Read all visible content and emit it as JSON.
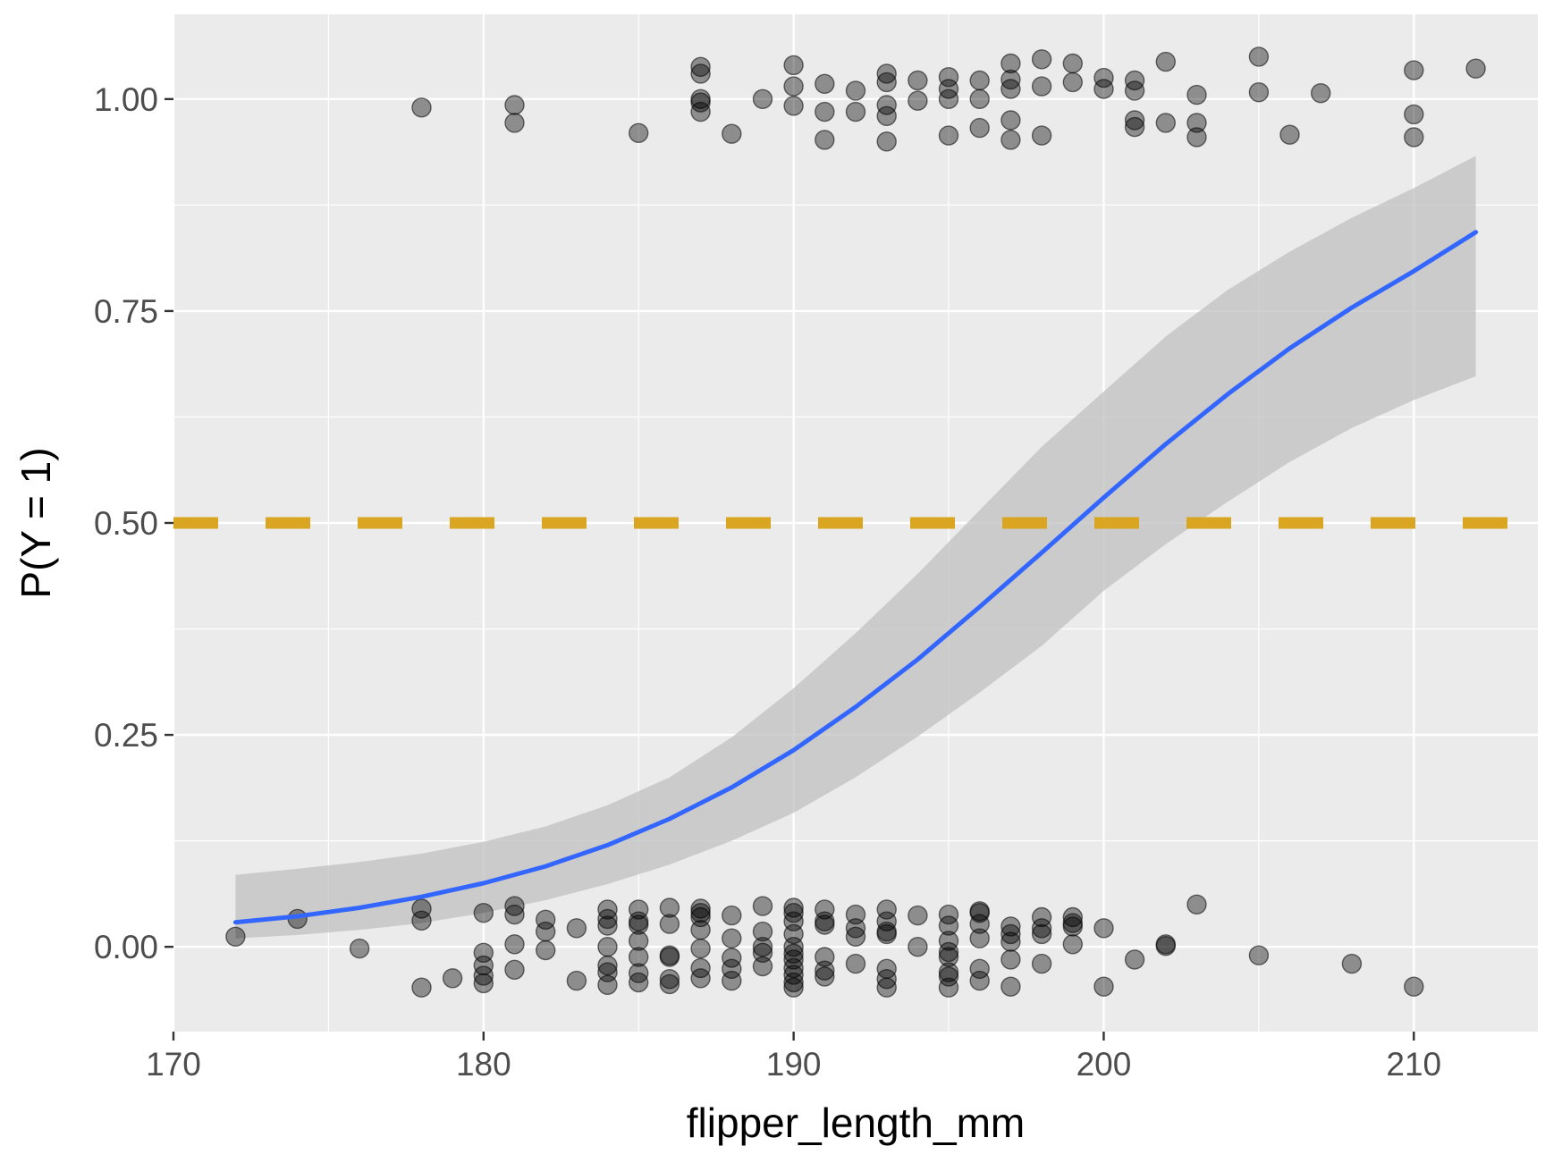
{
  "chart_data": {
    "type": "scatter",
    "xlabel": "flipper_length_mm",
    "ylabel": "P(Y = 1)",
    "xlim": [
      170,
      214
    ],
    "ylim": [
      -0.1,
      1.1
    ],
    "x_ticks": [
      170,
      180,
      190,
      200,
      210
    ],
    "x_tick_labels": [
      "170",
      "180",
      "190",
      "200",
      "210"
    ],
    "y_ticks": [
      0,
      0.25,
      0.5,
      0.75,
      1
    ],
    "y_tick_labels": [
      "0.00",
      "0.25",
      "0.50",
      "0.75",
      "1.00"
    ],
    "grid": true,
    "legend": "none",
    "colors": {
      "panel_background": "#ebebeb",
      "grid_line": "#ffffff",
      "points": "#000000",
      "fit_line": "#3366ff",
      "confidence_band": "#c0c0c0",
      "reference_line": "#daa520"
    },
    "reference_line": {
      "y": 0.5,
      "style": "dashed"
    },
    "fit": {
      "x": [
        172,
        174,
        176,
        178,
        180,
        182,
        184,
        186,
        188,
        190,
        192,
        194,
        196,
        198,
        200,
        202,
        204,
        206,
        208,
        210,
        212
      ],
      "y": [
        0.029,
        0.036,
        0.046,
        0.059,
        0.075,
        0.095,
        0.12,
        0.151,
        0.188,
        0.232,
        0.283,
        0.339,
        0.401,
        0.465,
        0.53,
        0.593,
        0.652,
        0.706,
        0.754,
        0.797,
        0.843
      ],
      "lower": [
        0.01,
        0.014,
        0.02,
        0.028,
        0.04,
        0.055,
        0.074,
        0.097,
        0.125,
        0.158,
        0.2,
        0.248,
        0.3,
        0.355,
        0.42,
        0.475,
        0.525,
        0.572,
        0.612,
        0.645,
        0.673
      ],
      "upper": [
        0.085,
        0.092,
        0.1,
        0.11,
        0.124,
        0.142,
        0.167,
        0.2,
        0.247,
        0.305,
        0.37,
        0.44,
        0.515,
        0.59,
        0.655,
        0.72,
        0.775,
        0.82,
        0.86,
        0.895,
        0.933
      ]
    },
    "series": [
      {
        "values_y1": [
          [
            178,
            0.99
          ],
          [
            181,
            0.993
          ],
          [
            181,
            0.972
          ],
          [
            185,
            0.96
          ],
          [
            187,
            1.038
          ],
          [
            187,
            1.03
          ],
          [
            187,
            1.0
          ],
          [
            187,
            0.996
          ],
          [
            187,
            0.985
          ],
          [
            188,
            0.959
          ],
          [
            189,
            1.0
          ],
          [
            190,
            1.04
          ],
          [
            190,
            1.015
          ],
          [
            190,
            0.992
          ],
          [
            191,
            1.018
          ],
          [
            191,
            0.985
          ],
          [
            191,
            0.952
          ],
          [
            192,
            1.01
          ],
          [
            192,
            0.985
          ],
          [
            193,
            1.03
          ],
          [
            193,
            1.02
          ],
          [
            193,
            0.993
          ],
          [
            193,
            0.98
          ],
          [
            193,
            0.95
          ],
          [
            194,
            1.022
          ],
          [
            194,
            0.998
          ],
          [
            195,
            1.026
          ],
          [
            195,
            1.012
          ],
          [
            195,
            1.0
          ],
          [
            195,
            0.957
          ],
          [
            196,
            1.022
          ],
          [
            196,
            1.0
          ],
          [
            196,
            0.966
          ],
          [
            197,
            1.042
          ],
          [
            197,
            1.023
          ],
          [
            197,
            1.012
          ],
          [
            197,
            0.975
          ],
          [
            197,
            0.952
          ],
          [
            198,
            1.047
          ],
          [
            198,
            1.015
          ],
          [
            198,
            0.957
          ],
          [
            199,
            1.042
          ],
          [
            199,
            1.02
          ],
          [
            200,
            1.025
          ],
          [
            200,
            1.012
          ],
          [
            201,
            1.022
          ],
          [
            201,
            1.01
          ],
          [
            201,
            0.975
          ],
          [
            201,
            0.967
          ],
          [
            202,
            1.044
          ],
          [
            202,
            0.972
          ],
          [
            203,
            1.005
          ],
          [
            203,
            0.972
          ],
          [
            203,
            0.955
          ],
          [
            205,
            1.05
          ],
          [
            205,
            1.008
          ],
          [
            206,
            0.958
          ],
          [
            207,
            1.007
          ],
          [
            210,
            1.034
          ],
          [
            210,
            0.982
          ],
          [
            210,
            0.955
          ],
          [
            212,
            1.036
          ]
        ]
      },
      {
        "values_y0": [
          [
            172,
            0.012
          ],
          [
            174,
            0.033
          ],
          [
            176,
            -0.002
          ],
          [
            178,
            0.045
          ],
          [
            178,
            0.031
          ],
          [
            178,
            -0.048
          ],
          [
            179,
            -0.037
          ],
          [
            180,
            0.04
          ],
          [
            180,
            -0.007
          ],
          [
            180,
            -0.022
          ],
          [
            180,
            -0.034
          ],
          [
            180,
            -0.043
          ],
          [
            181,
            0.048
          ],
          [
            181,
            0.038
          ],
          [
            181,
            0.003
          ],
          [
            181,
            -0.027
          ],
          [
            182,
            0.032
          ],
          [
            182,
            0.018
          ],
          [
            182,
            -0.004
          ],
          [
            183,
            0.022
          ],
          [
            183,
            -0.04
          ],
          [
            184,
            0.044
          ],
          [
            184,
            0.033
          ],
          [
            184,
            0.025
          ],
          [
            184,
            0.0
          ],
          [
            184,
            -0.022
          ],
          [
            184,
            -0.03
          ],
          [
            184,
            -0.045
          ],
          [
            185,
            0.044
          ],
          [
            185,
            0.03
          ],
          [
            185,
            0.026
          ],
          [
            185,
            0.007
          ],
          [
            185,
            -0.012
          ],
          [
            185,
            -0.031
          ],
          [
            185,
            -0.042
          ],
          [
            186,
            0.046
          ],
          [
            186,
            0.027
          ],
          [
            186,
            -0.01
          ],
          [
            186,
            -0.012
          ],
          [
            186,
            -0.038
          ],
          [
            186,
            -0.044
          ],
          [
            187,
            0.045
          ],
          [
            187,
            0.04
          ],
          [
            187,
            0.035
          ],
          [
            187,
            0.02
          ],
          [
            187,
            -0.002
          ],
          [
            187,
            -0.025
          ],
          [
            187,
            -0.037
          ],
          [
            188,
            0.037
          ],
          [
            188,
            0.01
          ],
          [
            188,
            -0.013
          ],
          [
            188,
            -0.026
          ],
          [
            188,
            -0.04
          ],
          [
            189,
            0.048
          ],
          [
            189,
            0.018
          ],
          [
            189,
            0.0
          ],
          [
            189,
            -0.007
          ],
          [
            189,
            -0.023
          ],
          [
            190,
            0.046
          ],
          [
            190,
            0.04
          ],
          [
            190,
            0.03
          ],
          [
            190,
            0.015
          ],
          [
            190,
            0.0
          ],
          [
            190,
            -0.008
          ],
          [
            190,
            -0.015
          ],
          [
            190,
            -0.025
          ],
          [
            190,
            -0.033
          ],
          [
            190,
            -0.042
          ],
          [
            190,
            -0.048
          ],
          [
            191,
            0.044
          ],
          [
            191,
            0.03
          ],
          [
            191,
            0.026
          ],
          [
            191,
            -0.012
          ],
          [
            191,
            -0.028
          ],
          [
            191,
            -0.035
          ],
          [
            192,
            0.038
          ],
          [
            192,
            0.022
          ],
          [
            192,
            0.012
          ],
          [
            192,
            -0.02
          ],
          [
            193,
            0.044
          ],
          [
            193,
            0.03
          ],
          [
            193,
            0.015
          ],
          [
            193,
            0.018
          ],
          [
            193,
            -0.026
          ],
          [
            193,
            -0.038
          ],
          [
            193,
            -0.048
          ],
          [
            194,
            0.037
          ],
          [
            194,
            0.0
          ],
          [
            195,
            0.038
          ],
          [
            195,
            0.025
          ],
          [
            195,
            0.007
          ],
          [
            195,
            -0.006
          ],
          [
            195,
            -0.012
          ],
          [
            195,
            -0.03
          ],
          [
            195,
            -0.035
          ],
          [
            195,
            -0.048
          ],
          [
            196,
            0.042
          ],
          [
            196,
            0.04
          ],
          [
            196,
            0.027
          ],
          [
            196,
            0.01
          ],
          [
            196,
            -0.026
          ],
          [
            196,
            -0.04
          ],
          [
            197,
            0.024
          ],
          [
            197,
            0.015
          ],
          [
            197,
            0.006
          ],
          [
            197,
            -0.015
          ],
          [
            197,
            -0.047
          ],
          [
            198,
            0.035
          ],
          [
            198,
            0.022
          ],
          [
            198,
            0.015
          ],
          [
            198,
            -0.02
          ],
          [
            199,
            0.035
          ],
          [
            199,
            0.028
          ],
          [
            199,
            0.024
          ],
          [
            199,
            0.003
          ],
          [
            200,
            0.022
          ],
          [
            200,
            -0.047
          ],
          [
            201,
            -0.015
          ],
          [
            202,
            0.003
          ],
          [
            202,
            0.001
          ],
          [
            203,
            0.05
          ],
          [
            205,
            -0.01
          ],
          [
            208,
            -0.02
          ],
          [
            210,
            -0.047
          ]
        ]
      }
    ]
  }
}
